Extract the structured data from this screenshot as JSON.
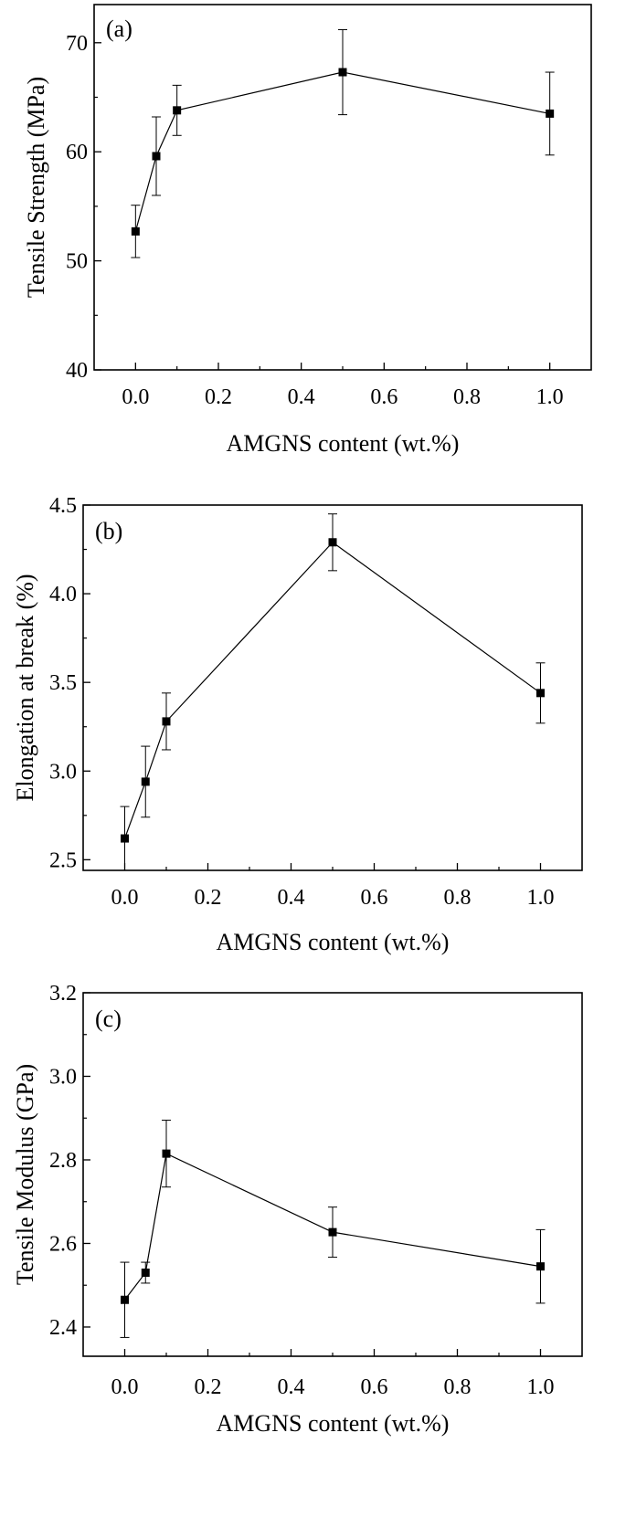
{
  "chart_data": [
    {
      "type": "line",
      "panel_label": "(a)",
      "xlabel": "AMGNS content (wt.%)",
      "ylabel": "Tensile Strength (MPa)",
      "xlim": [
        -0.1,
        1.1
      ],
      "ylim": [
        40,
        73.5
      ],
      "xticks": [
        0.0,
        0.2,
        0.4,
        0.6,
        0.8,
        1.0
      ],
      "xtick_labels": [
        "0.0",
        "0.2",
        "0.4",
        "0.6",
        "0.8",
        "1.0"
      ],
      "yticks": [
        40,
        50,
        60,
        70
      ],
      "ytick_labels": [
        "40",
        "50",
        "60",
        "70"
      ],
      "grid": false,
      "legend": "none",
      "series": [
        {
          "x": [
            0,
            0.05,
            0.1,
            0.5,
            1.0
          ],
          "y": [
            52.7,
            59.6,
            63.8,
            67.3,
            63.5
          ],
          "error": [
            2.4,
            3.6,
            2.3,
            3.9,
            3.8
          ]
        }
      ]
    },
    {
      "type": "line",
      "panel_label": "(b)",
      "xlabel": "AMGNS content (wt.%)",
      "ylabel": "Elongation at break (%)",
      "xlim": [
        -0.1,
        1.1
      ],
      "ylim": [
        2.44,
        4.5
      ],
      "xticks": [
        0.0,
        0.2,
        0.4,
        0.6,
        0.8,
        1.0
      ],
      "xtick_labels": [
        "0.0",
        "0.2",
        "0.4",
        "0.6",
        "0.8",
        "1.0"
      ],
      "yticks": [
        2.5,
        3.0,
        3.5,
        4.0,
        4.5
      ],
      "ytick_labels": [
        "2.5",
        "3.0",
        "3.5",
        "4.0",
        "4.5"
      ],
      "grid": false,
      "legend": "none",
      "series": [
        {
          "x": [
            0,
            0.05,
            0.1,
            0.5,
            1.0
          ],
          "y": [
            2.62,
            2.94,
            3.28,
            4.29,
            3.44
          ],
          "error": [
            0.18,
            0.2,
            0.16,
            0.16,
            0.17
          ]
        }
      ]
    },
    {
      "type": "line",
      "panel_label": "(c)",
      "xlabel": "AMGNS content (wt.%)",
      "ylabel": "Tensile Modulus (GPa)",
      "xlim": [
        -0.1,
        1.1
      ],
      "ylim": [
        2.33,
        3.2
      ],
      "xticks": [
        0.0,
        0.2,
        0.4,
        0.6,
        0.8,
        1.0
      ],
      "xtick_labels": [
        "0.0",
        "0.2",
        "0.4",
        "0.6",
        "0.8",
        "1.0"
      ],
      "yticks": [
        2.4,
        2.6,
        2.8,
        3.0,
        3.2
      ],
      "ytick_labels": [
        "2.4",
        "2.6",
        "2.8",
        "3.0",
        "3.2"
      ],
      "grid": false,
      "legend": "none",
      "series": [
        {
          "x": [
            0,
            0.05,
            0.1,
            0.5,
            1.0
          ],
          "y": [
            2.465,
            2.53,
            2.815,
            2.627,
            2.545
          ],
          "error": [
            0.09,
            0.025,
            0.08,
            0.06,
            0.088
          ]
        }
      ]
    }
  ]
}
